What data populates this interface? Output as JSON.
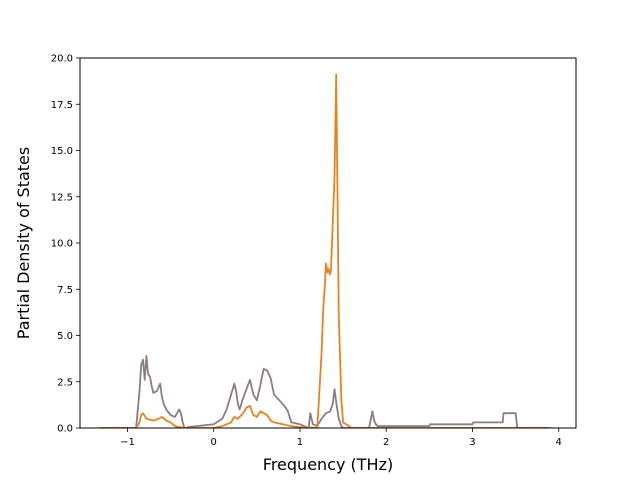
{
  "chart_data": {
    "type": "line",
    "title": "",
    "xlabel": "Frequency (THz)",
    "ylabel": "Partial Density of States",
    "xlim": [
      -1.55,
      4.2
    ],
    "ylim": [
      0,
      20
    ],
    "xticks": [
      -1,
      0,
      1,
      2,
      3,
      4
    ],
    "xtick_labels": [
      "−1",
      "0",
      "1",
      "2",
      "3",
      "4"
    ],
    "yticks": [
      0,
      2.5,
      5,
      7.5,
      10,
      12.5,
      15,
      17.5,
      20
    ],
    "ytick_labels": [
      "0.0",
      "2.5",
      "5.0",
      "7.5",
      "10.0",
      "12.5",
      "15.0",
      "17.5",
      "20.0"
    ],
    "grid": false,
    "series": [
      {
        "color": "#8c7c86",
        "x": [
          -1.33,
          -0.9,
          -0.86,
          -0.84,
          -0.82,
          -0.8,
          -0.78,
          -0.76,
          -0.74,
          -0.72,
          -0.7,
          -0.66,
          -0.62,
          -0.6,
          -0.58,
          -0.55,
          -0.5,
          -0.45,
          -0.4,
          -0.38,
          -0.36,
          -0.34,
          -0.32,
          -0.3,
          -0.2,
          0.0,
          0.1,
          0.15,
          0.2,
          0.24,
          0.26,
          0.28,
          0.3,
          0.34,
          0.38,
          0.42,
          0.46,
          0.5,
          0.54,
          0.58,
          0.62,
          0.66,
          0.7,
          0.76,
          0.82,
          0.86,
          0.9,
          1.0,
          1.05,
          1.1,
          1.12,
          1.15,
          1.2,
          1.25,
          1.3,
          1.35,
          1.38,
          1.4,
          1.42,
          1.45,
          1.48,
          1.5,
          1.6,
          1.8,
          1.84,
          1.86,
          1.88,
          1.9,
          2.0,
          2.5,
          2.51,
          2.8,
          3.0,
          3.01,
          3.35,
          3.36,
          3.5,
          3.52,
          3.6,
          3.9
        ],
        "values": [
          0.0,
          0.0,
          2.0,
          3.4,
          3.7,
          2.6,
          3.9,
          2.9,
          2.8,
          2.3,
          1.9,
          2.0,
          2.4,
          1.7,
          1.3,
          1.0,
          0.7,
          0.6,
          1.0,
          0.8,
          0.3,
          0.0,
          0.0,
          0.05,
          0.1,
          0.2,
          0.5,
          1.0,
          1.8,
          2.4,
          2.0,
          1.3,
          1.0,
          1.6,
          2.1,
          2.6,
          1.8,
          1.5,
          2.3,
          3.2,
          3.1,
          2.7,
          1.8,
          1.5,
          1.2,
          0.9,
          0.3,
          0.2,
          0.1,
          0.0,
          0.8,
          0.2,
          0.1,
          0.5,
          0.8,
          0.9,
          1.3,
          2.1,
          1.4,
          0.5,
          0.1,
          0.0,
          0.0,
          0.0,
          0.9,
          0.4,
          0.2,
          0.1,
          0.1,
          0.1,
          0.2,
          0.2,
          0.2,
          0.3,
          0.3,
          0.8,
          0.8,
          0.0,
          0.0,
          0.0
        ]
      },
      {
        "color": "#e8821e",
        "x": [
          -1.33,
          -0.9,
          -0.86,
          -0.84,
          -0.82,
          -0.78,
          -0.7,
          -0.64,
          -0.6,
          -0.55,
          -0.5,
          -0.45,
          -0.4,
          -0.34,
          -0.3,
          0.0,
          0.1,
          0.2,
          0.24,
          0.28,
          0.34,
          0.38,
          0.42,
          0.46,
          0.5,
          0.54,
          0.58,
          0.62,
          0.66,
          0.7,
          0.8,
          0.9,
          1.0,
          1.2,
          1.22,
          1.25,
          1.27,
          1.29,
          1.3,
          1.32,
          1.33,
          1.35,
          1.36,
          1.38,
          1.4,
          1.42,
          1.45,
          1.48,
          1.5,
          1.6,
          2.0,
          3.0,
          3.9
        ],
        "values": [
          0.0,
          0.0,
          0.3,
          0.7,
          0.8,
          0.5,
          0.4,
          0.5,
          0.6,
          0.4,
          0.3,
          0.1,
          0.05,
          0.0,
          0.0,
          0.0,
          0.1,
          0.3,
          0.6,
          0.5,
          0.8,
          1.1,
          1.2,
          0.7,
          0.6,
          0.9,
          0.8,
          0.7,
          0.4,
          0.3,
          0.2,
          0.1,
          0.05,
          0.0,
          1.5,
          4.0,
          6.5,
          7.8,
          8.9,
          8.4,
          8.6,
          8.3,
          8.6,
          11.0,
          13.5,
          19.1,
          6.0,
          1.5,
          0.3,
          0.0,
          0.0,
          0.0,
          0.0
        ]
      }
    ]
  }
}
